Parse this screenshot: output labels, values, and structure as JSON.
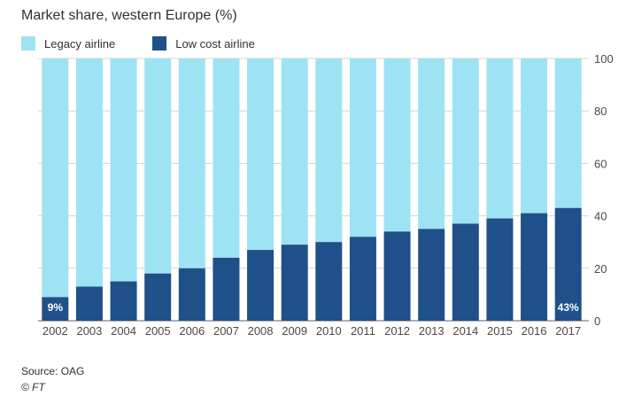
{
  "title": "Market share, western Europe (%)",
  "source": "Source: OAG",
  "credit": "© FT",
  "colors": {
    "legacy": "#9ee3f3",
    "lowcost": "#1f5089",
    "grid": "#d9d4cf",
    "axis": "#66605c"
  },
  "chart_data": {
    "type": "bar",
    "stacked": true,
    "categories": [
      "2002",
      "2003",
      "2004",
      "2005",
      "2006",
      "2007",
      "2008",
      "2009",
      "2010",
      "2011",
      "2012",
      "2013",
      "2014",
      "2015",
      "2016",
      "2017"
    ],
    "series": [
      {
        "name": "Legacy airline",
        "values": [
          91,
          87,
          85,
          82,
          80,
          76,
          73,
          71,
          70,
          68,
          66,
          65,
          63,
          61,
          59,
          57
        ]
      },
      {
        "name": "Low cost airline",
        "values": [
          9,
          13,
          15,
          18,
          20,
          24,
          27,
          29,
          30,
          32,
          34,
          35,
          37,
          39,
          41,
          43
        ]
      }
    ],
    "ylim": [
      0,
      100
    ],
    "yticks": [
      "0",
      "20",
      "40",
      "60",
      "80",
      "100"
    ],
    "ytick_values": [
      0,
      20,
      40,
      60,
      80,
      100
    ],
    "y_axis_side": "right",
    "grid": true,
    "legend": "top-left",
    "data_labels": [
      {
        "category": "2002",
        "text": "9%"
      },
      {
        "category": "2017",
        "text": "43%"
      }
    ]
  }
}
